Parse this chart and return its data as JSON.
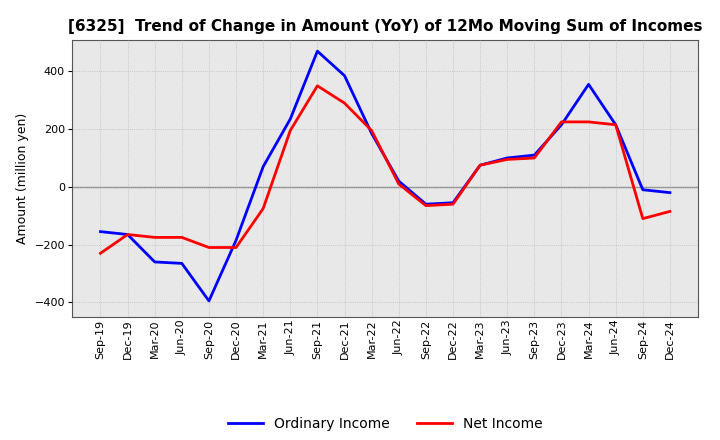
{
  "title": "[6325]  Trend of Change in Amount (YoY) of 12Mo Moving Sum of Incomes",
  "ylabel": "Amount (million yen)",
  "xlabels": [
    "Sep-19",
    "Dec-19",
    "Mar-20",
    "Jun-20",
    "Sep-20",
    "Dec-20",
    "Mar-21",
    "Jun-21",
    "Sep-21",
    "Dec-21",
    "Mar-22",
    "Jun-22",
    "Sep-22",
    "Dec-22",
    "Mar-23",
    "Jun-23",
    "Sep-23",
    "Dec-23",
    "Mar-24",
    "Jun-24",
    "Sep-24",
    "Dec-24"
  ],
  "ordinary_income": [
    -155,
    -165,
    -260,
    -265,
    -395,
    -185,
    70,
    235,
    470,
    385,
    185,
    20,
    -60,
    -55,
    75,
    100,
    110,
    215,
    355,
    215,
    -10,
    -20
  ],
  "net_income": [
    -230,
    -165,
    -175,
    -175,
    -210,
    -210,
    -75,
    195,
    350,
    290,
    195,
    10,
    -65,
    -60,
    75,
    95,
    100,
    225,
    225,
    215,
    -110,
    -85
  ],
  "ordinary_color": "#0000FF",
  "net_color": "#FF0000",
  "ylim": [
    -450,
    510
  ],
  "yticks": [
    -400,
    -200,
    0,
    200,
    400
  ],
  "background_color": "#FFFFFF",
  "plot_bg_color": "#E8E8E8",
  "grid_color": "#BBBBBB",
  "zero_line_color": "#888888",
  "line_width": 2.0,
  "legend_ordinary": "Ordinary Income",
  "legend_net": "Net Income",
  "title_fontsize": 11,
  "ylabel_fontsize": 9,
  "tick_fontsize": 8
}
